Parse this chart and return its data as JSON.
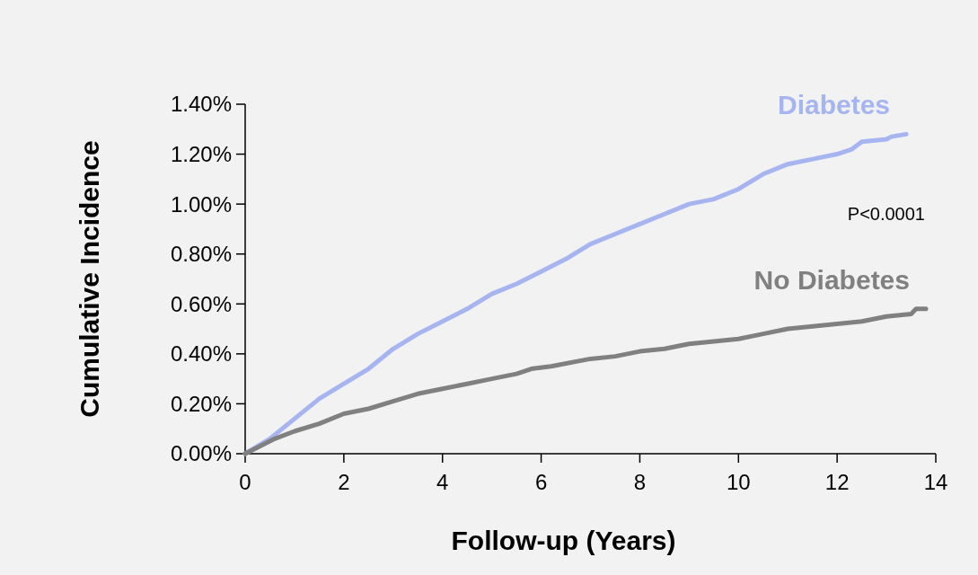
{
  "chart_data": {
    "type": "line",
    "xlabel": "Follow-up (Years)",
    "ylabel": "Cumulative Incidence",
    "xlim": [
      0,
      14
    ],
    "xticks": [
      0,
      2,
      4,
      6,
      8,
      10,
      12,
      14
    ],
    "ylim": [
      0,
      1.4
    ],
    "yticks": [
      {
        "value": 0,
        "label": "0.00%"
      },
      {
        "value": 0.2,
        "label": "0.20%"
      },
      {
        "value": 0.4,
        "label": "0.40%"
      },
      {
        "value": 0.6,
        "label": "0.60%"
      },
      {
        "value": 0.8,
        "label": "0.80%"
      },
      {
        "value": 1.0,
        "label": "1.00%"
      },
      {
        "value": 1.2,
        "label": "1.20%"
      },
      {
        "value": 1.4,
        "label": "1.40%"
      }
    ],
    "grid": false,
    "legend": false,
    "marker": "none",
    "line_style": "solid",
    "annotations": [
      "P<0.0001"
    ],
    "series": [
      {
        "name": "Diabetes",
        "color": "#a6b4f0",
        "x": [
          0,
          0.5,
          1,
          1.5,
          2,
          2.5,
          3,
          3.5,
          4,
          4.5,
          5,
          5.5,
          6,
          6.5,
          7,
          7.5,
          8,
          8.5,
          9,
          9.5,
          10,
          10.5,
          11,
          11.5,
          12,
          12.3,
          12.5,
          13,
          13.1,
          13.4
        ],
        "values": [
          0,
          0.06,
          0.14,
          0.22,
          0.28,
          0.34,
          0.42,
          0.48,
          0.53,
          0.58,
          0.64,
          0.68,
          0.73,
          0.78,
          0.84,
          0.88,
          0.92,
          0.96,
          1.0,
          1.02,
          1.06,
          1.12,
          1.16,
          1.18,
          1.2,
          1.22,
          1.25,
          1.26,
          1.27,
          1.28
        ]
      },
      {
        "name": "No Diabetes",
        "color": "#808080",
        "x": [
          0,
          0.6,
          1,
          1.5,
          2,
          2.5,
          3,
          3.5,
          4,
          4.5,
          5,
          5.5,
          5.8,
          6.2,
          7,
          7.5,
          8,
          8.5,
          9,
          9.5,
          10,
          10.5,
          11,
          11.5,
          12,
          12.5,
          13,
          13.5,
          13.6,
          13.8
        ],
        "values": [
          0,
          0.06,
          0.09,
          0.12,
          0.16,
          0.18,
          0.21,
          0.24,
          0.26,
          0.28,
          0.3,
          0.32,
          0.34,
          0.35,
          0.38,
          0.39,
          0.41,
          0.42,
          0.44,
          0.45,
          0.46,
          0.48,
          0.5,
          0.51,
          0.52,
          0.53,
          0.55,
          0.56,
          0.58,
          0.58
        ]
      }
    ]
  }
}
